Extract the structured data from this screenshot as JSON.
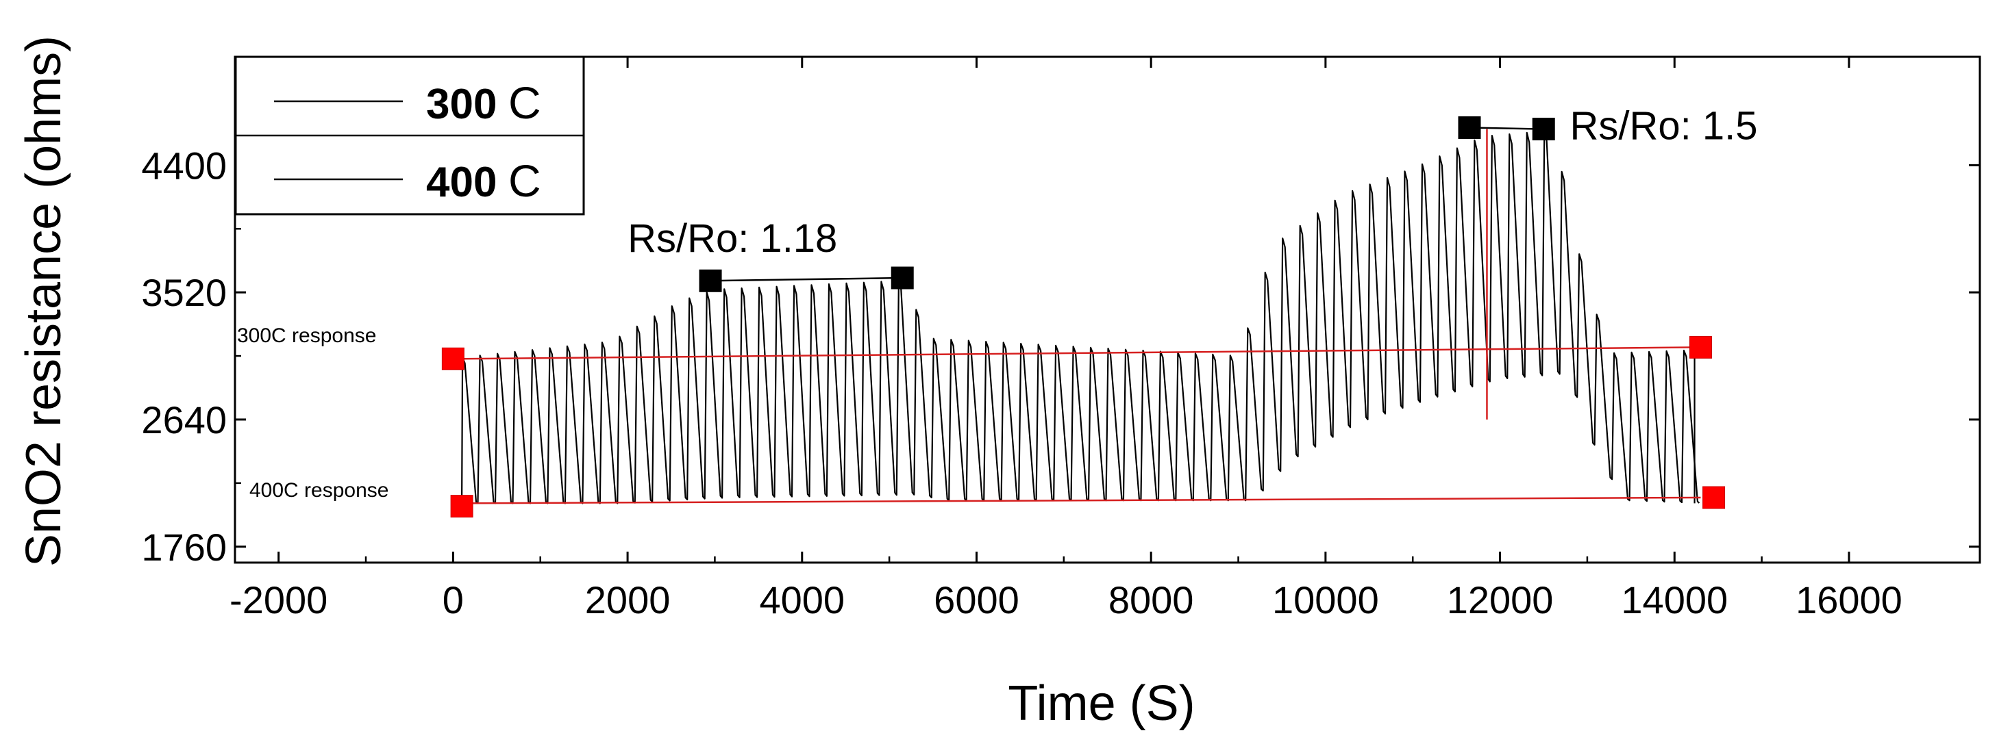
{
  "chart_data": {
    "type": "line",
    "title": "",
    "xlabel": "Time (S)",
    "ylabel": "SnO2 resistance (ohms)",
    "xlim": [
      -2500,
      17500
    ],
    "ylim": [
      1650,
      5150
    ],
    "xticks": [
      -2000,
      0,
      2000,
      4000,
      6000,
      8000,
      10000,
      12000,
      14000,
      16000
    ],
    "yticks": [
      1760,
      2640,
      3520,
      4400
    ],
    "cycle_period_s": 200,
    "series": [
      {
        "name": "300 C",
        "line_color": "#000000",
        "note": "pulsed response, one peak/trough per cycle",
        "envelope_points": [
          {
            "x": 100,
            "peak": 3070,
            "trough": 2060
          },
          {
            "x": 1800,
            "peak": 3180,
            "trough": 2060
          },
          {
            "x": 2600,
            "peak": 3460,
            "trough": 2090
          },
          {
            "x": 3000,
            "peak": 3540,
            "trough": 2100
          },
          {
            "x": 5100,
            "peak": 3600,
            "trough": 2120
          },
          {
            "x": 5500,
            "peak": 3200,
            "trough": 2080
          },
          {
            "x": 9000,
            "peak": 3080,
            "trough": 2080
          },
          {
            "x": 9400,
            "peak": 3850,
            "trough": 2350
          },
          {
            "x": 10200,
            "peak": 4200,
            "trough": 2620
          },
          {
            "x": 11000,
            "peak": 4380,
            "trough": 2780
          },
          {
            "x": 11800,
            "peak": 4600,
            "trough": 2920
          },
          {
            "x": 12600,
            "peak": 4640,
            "trough": 2960
          },
          {
            "x": 13000,
            "peak": 3500,
            "trough": 2300
          },
          {
            "x": 13300,
            "peak": 3100,
            "trough": 2080
          },
          {
            "x": 14200,
            "peak": 3120,
            "trough": 2060
          }
        ]
      },
      {
        "name": "400 C",
        "line_color": "#000000"
      }
    ],
    "legend": {
      "placement": "top-left",
      "entries": [
        {
          "number": "300",
          "unit": "C"
        },
        {
          "number": "400",
          "unit": "C"
        }
      ]
    },
    "baselines": [
      {
        "label": "300C response",
        "color": "#d62020",
        "x": [
          100,
          14300
        ],
        "y": [
          3060,
          3140
        ]
      },
      {
        "label": "400C response",
        "color": "#d62020",
        "x": [
          100,
          14300
        ],
        "y": [
          2060,
          2100
        ]
      }
    ],
    "markers": [
      {
        "x": 0,
        "y": 3060,
        "color": "#ff0000"
      },
      {
        "x": 100,
        "y": 2040,
        "color": "#ff0000"
      },
      {
        "x": 14300,
        "y": 3140,
        "color": "#ff0000"
      },
      {
        "x": 14450,
        "y": 2100,
        "color": "#ff0000"
      },
      {
        "x": 2950,
        "y": 3600,
        "color": "#000000"
      },
      {
        "x": 5150,
        "y": 3620,
        "color": "#000000"
      },
      {
        "x": 11650,
        "y": 4660,
        "color": "#000000"
      },
      {
        "x": 12500,
        "y": 4650,
        "color": "#000000"
      }
    ],
    "annotations": [
      {
        "text": "Rs/Ro:  1.18",
        "x": 2000,
        "y": 3800
      },
      {
        "text": "Rs/Ro: 1.5",
        "x": 12800,
        "y": 4580
      }
    ],
    "vertical_ref_line": {
      "x": 11850,
      "y": [
        2640,
        4650
      ],
      "color": "#d62020"
    },
    "grid": false
  }
}
